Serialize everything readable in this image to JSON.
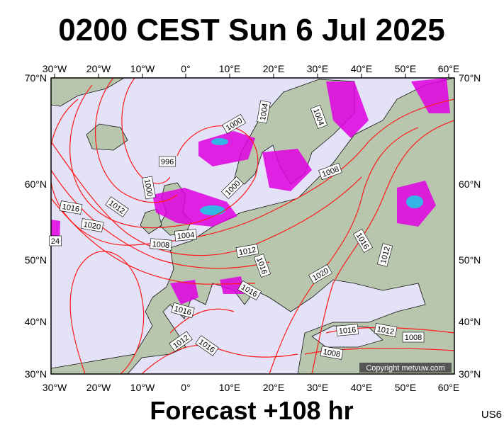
{
  "header": {
    "title": "0200 CEST Sun 6 Jul 2025"
  },
  "longitude_labels": [
    "30°W",
    "20°W",
    "10°W",
    "0°",
    "10°E",
    "20°E",
    "30°E",
    "40°E",
    "50°E",
    "60°E"
  ],
  "latitude_labels": [
    "70°N",
    "60°N",
    "50°N",
    "40°N",
    "30°N"
  ],
  "isobar_labels": [
    "1000",
    "1004",
    "1004",
    "996",
    "1000",
    "1008",
    "1000",
    "1016",
    "1012",
    "1020",
    "24",
    "1004",
    "1008",
    "1012",
    "1016",
    "1016",
    "1012",
    "1020",
    "1016",
    "1016",
    "1012",
    "1016",
    "1016",
    "1012",
    "1008",
    "1008"
  ],
  "footer": {
    "subtitle": "Forecast +108 hr",
    "model": "US6",
    "copyright": "Copyright metvuw.com"
  }
}
